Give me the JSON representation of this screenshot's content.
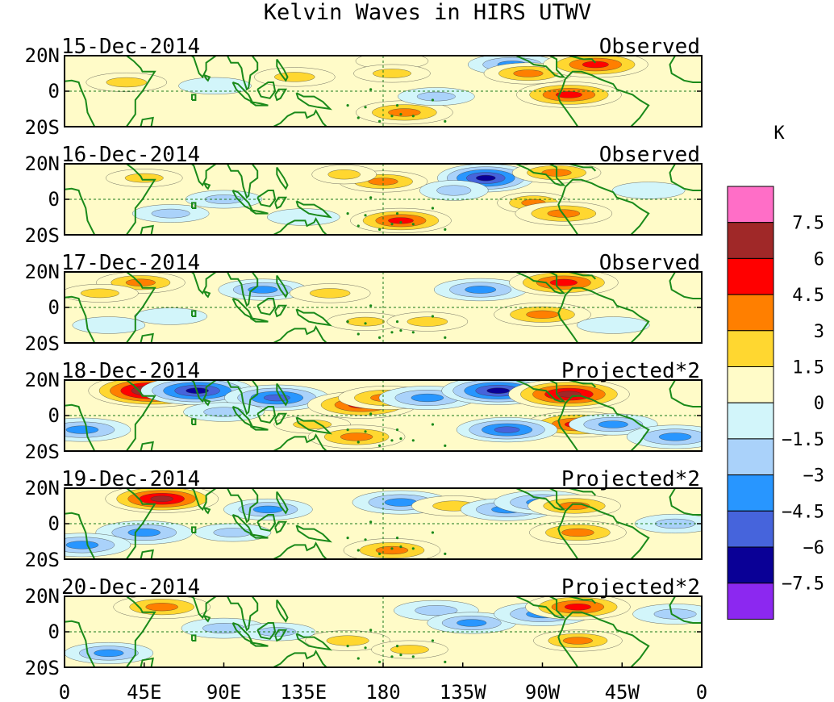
{
  "chart_data": {
    "type": "heatmap",
    "title": "Kelvin Waves in HIRS UTWV",
    "colorbar": {
      "unit": "K",
      "levels": [
        7.5,
        6,
        4.5,
        3,
        1.5,
        0,
        -1.5,
        -3,
        -4.5,
        -6,
        -7.5
      ],
      "colors": [
        "#ff6ec7",
        "#a02828",
        "#ff0000",
        "#ff7f00",
        "#ffd730",
        "#fffbc8",
        "#d2f5fa",
        "#aad2fa",
        "#2896ff",
        "#4664dc",
        "#0a0096",
        "#8c28f0"
      ]
    },
    "x_ticks": [
      "0",
      "45E",
      "90E",
      "135E",
      "180",
      "135W",
      "90W",
      "45W",
      "0"
    ],
    "y_ticks": [
      "20N",
      "0",
      "20S"
    ],
    "panels": [
      {
        "date": "15-Dec-2014",
        "type": "Observed",
        "blobs": [
          [
            185,
            17,
            1,
            -1
          ],
          [
            185,
            10,
            1.5,
            -2
          ],
          [
            253,
            15,
            -3,
            -1
          ],
          [
            262,
            10,
            3,
            1
          ],
          [
            285,
            -2,
            5,
            2
          ],
          [
            192,
            -12,
            4,
            1
          ],
          [
            85,
            3,
            -1,
            1
          ],
          [
            130,
            8,
            2,
            1
          ],
          [
            35,
            5,
            2,
            1
          ],
          [
            210,
            -3,
            -1.5,
            1
          ],
          [
            300,
            15,
            5,
            1
          ]
        ]
      },
      {
        "date": "16-Dec-2014",
        "type": "Observed",
        "blobs": [
          [
            238,
            12,
            -6,
            0
          ],
          [
            220,
            5,
            -2.5,
            0
          ],
          [
            180,
            10,
            3,
            1
          ],
          [
            158,
            14,
            2,
            0
          ],
          [
            190,
            -12,
            4.5,
            1
          ],
          [
            265,
            -2,
            3,
            0
          ],
          [
            278,
            15,
            3,
            1
          ],
          [
            282,
            -8,
            4,
            1
          ],
          [
            45,
            12,
            1.5,
            1
          ],
          [
            90,
            0,
            -1.5,
            1
          ],
          [
            135,
            -10,
            -1,
            1
          ],
          [
            60,
            -8,
            -1.5,
            1
          ],
          [
            330,
            5,
            -1,
            1
          ]
        ]
      },
      {
        "date": "17-Dec-2014",
        "type": "Observed",
        "blobs": [
          [
            235,
            10,
            -3.5,
            1
          ],
          [
            282,
            14,
            5.5,
            1
          ],
          [
            270,
            -4,
            4,
            1
          ],
          [
            43,
            14,
            3,
            1
          ],
          [
            112,
            10,
            -3,
            1
          ],
          [
            150,
            8,
            2,
            1
          ],
          [
            170,
            -8,
            1.5,
            1
          ],
          [
            205,
            -8,
            2,
            1
          ],
          [
            60,
            -5,
            -1,
            1
          ],
          [
            25,
            -10,
            -1,
            1
          ],
          [
            310,
            -10,
            -1,
            1
          ],
          [
            20,
            8,
            1.5,
            1
          ]
        ]
      },
      {
        "date": "18-Dec-2014",
        "type": "Projected*2",
        "blobs": [
          [
            50,
            14,
            8,
            1
          ],
          [
            75,
            14,
            -6,
            1
          ],
          [
            120,
            10,
            -5,
            1
          ],
          [
            168,
            6,
            5.5,
            1
          ],
          [
            182,
            10,
            4,
            1
          ],
          [
            205,
            10,
            -4,
            1
          ],
          [
            245,
            14,
            -6,
            1
          ],
          [
            285,
            12,
            7,
            1
          ],
          [
            290,
            -5,
            5,
            1
          ],
          [
            90,
            2,
            -2,
            1
          ],
          [
            140,
            -5,
            1.5,
            1
          ],
          [
            165,
            -12,
            4,
            1
          ],
          [
            250,
            -8,
            -4.5,
            1
          ],
          [
            10,
            -8,
            -4,
            1
          ],
          [
            310,
            -5,
            -3,
            1
          ],
          [
            345,
            -12,
            -4,
            1
          ]
        ]
      },
      {
        "date": "19-Dec-2014",
        "type": "Projected*2",
        "blobs": [
          [
            55,
            14,
            6,
            1
          ],
          [
            115,
            8,
            -3,
            1
          ],
          [
            190,
            12,
            -4,
            1
          ],
          [
            220,
            10,
            2.5,
            1
          ],
          [
            250,
            8,
            -3.5,
            1
          ],
          [
            270,
            12,
            -4,
            1
          ],
          [
            288,
            10,
            3.5,
            1
          ],
          [
            290,
            -5,
            4,
            1
          ],
          [
            185,
            -15,
            4,
            1
          ],
          [
            45,
            -5,
            -4,
            1
          ],
          [
            10,
            -12,
            -4,
            1
          ],
          [
            345,
            0,
            -2,
            1
          ],
          [
            95,
            -5,
            -1.5,
            1
          ]
        ]
      },
      {
        "date": "20-Dec-2014",
        "type": "Projected*2",
        "blobs": [
          [
            55,
            14,
            4,
            1
          ],
          [
            90,
            2,
            -2.5,
            1
          ],
          [
            160,
            -5,
            2.5,
            1
          ],
          [
            210,
            12,
            -2.5,
            1
          ],
          [
            230,
            5,
            -3,
            1
          ],
          [
            270,
            10,
            -4,
            1
          ],
          [
            290,
            14,
            5,
            1
          ],
          [
            290,
            -5,
            3,
            1
          ],
          [
            25,
            -12,
            -3,
            1
          ],
          [
            120,
            0,
            -1.5,
            1
          ],
          [
            345,
            10,
            -2.5,
            1
          ],
          [
            195,
            -10,
            1.5,
            1
          ]
        ]
      }
    ]
  }
}
